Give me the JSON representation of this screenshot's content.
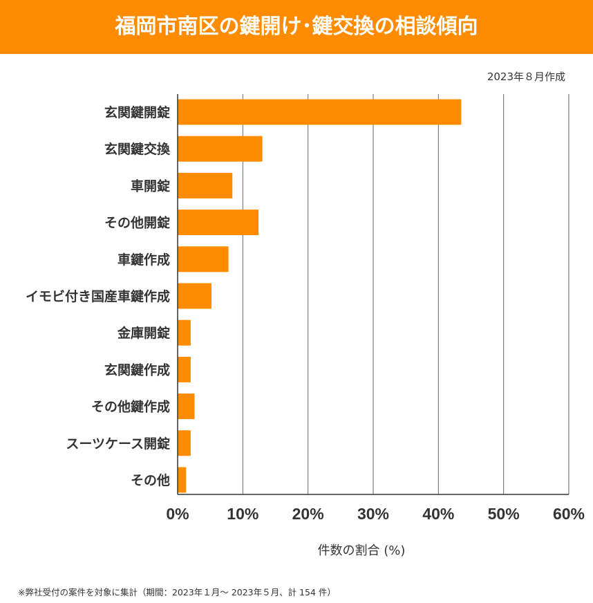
{
  "header": {
    "title": "福岡市南区の鍵開け･鍵交換の相談傾向",
    "bg_color": "#ff8c00"
  },
  "created_label": "2023年８月作成",
  "footnote": "※弊社受付の案件を対象に集計（期間：2023年１月～ 2023年５月、計 154 件）",
  "chart_data": {
    "type": "bar",
    "orientation": "horizontal",
    "bar_color": "#ff8c00",
    "grid": true,
    "xlabel": "件数の割合 (%)",
    "xlim": [
      0,
      60
    ],
    "xticks": [
      0,
      10,
      20,
      30,
      40,
      50,
      60
    ],
    "xtick_labels": [
      "0%",
      "10%",
      "20%",
      "30%",
      "40%",
      "50%",
      "60%"
    ],
    "categories": [
      "玄関鍵開錠",
      "玄関鍵交換",
      "車開錠",
      "その他開錠",
      "車鍵作成",
      "イモビ付き国産車鍵作成",
      "金庫開錠",
      "玄関鍵作成",
      "その他鍵作成",
      "スーツケース開錠",
      "その他"
    ],
    "values": [
      43.5,
      13.0,
      8.4,
      12.4,
      7.8,
      5.2,
      2.0,
      2.0,
      2.6,
      2.0,
      1.3
    ]
  }
}
